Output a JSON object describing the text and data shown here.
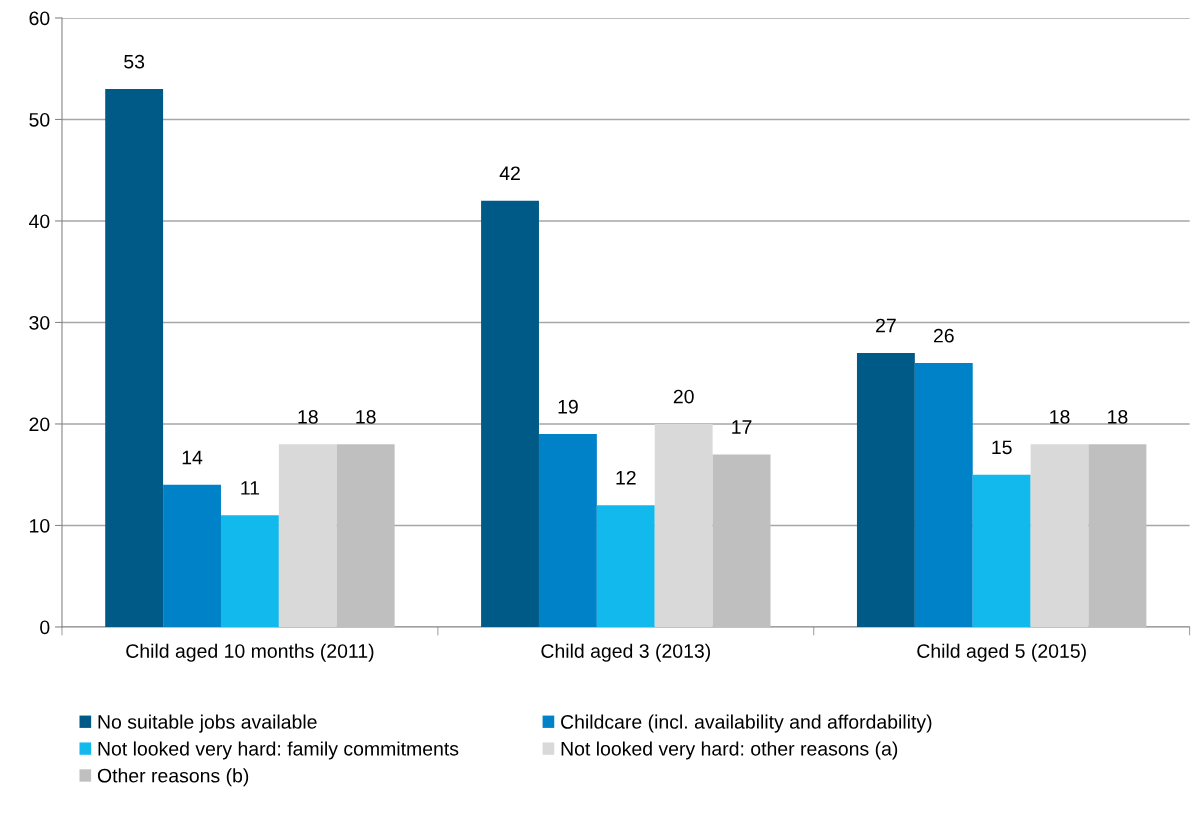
{
  "chart_data": {
    "type": "bar",
    "categories": [
      "Child aged 10 months (2011)",
      "Child aged 3 (2013)",
      "Child aged 5 (2015)"
    ],
    "series": [
      {
        "name": "No suitable jobs available",
        "color": "#005a87",
        "values": [
          53,
          42,
          27
        ]
      },
      {
        "name": "Childcare (incl. availability and affordability)",
        "color": "#0082c8",
        "values": [
          14,
          19,
          26
        ]
      },
      {
        "name": "Not looked very hard: family commitments",
        "color": "#12b9ec",
        "values": [
          11,
          12,
          15
        ]
      },
      {
        "name": "Not looked very hard: other reasons (a)",
        "color": "#d9d9d9",
        "values": [
          18,
          20,
          18
        ]
      },
      {
        "name": "Other reasons (b)",
        "color": "#bfbfbf",
        "values": [
          18,
          17,
          18
        ]
      }
    ],
    "ylim": [
      0,
      60
    ],
    "yticks": [
      0,
      10,
      20,
      30,
      40,
      50,
      60
    ],
    "grid": "y",
    "legend": "bottom",
    "data_labels": true
  }
}
